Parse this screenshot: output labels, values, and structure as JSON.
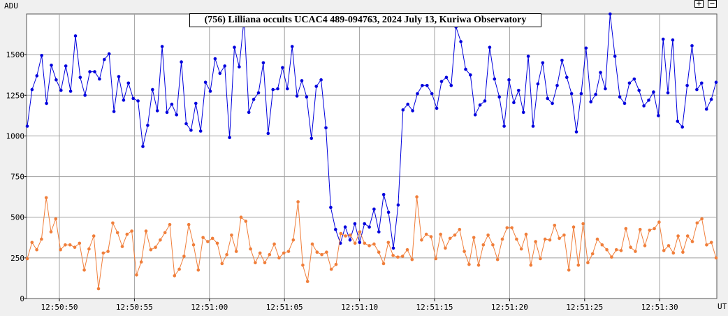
{
  "title": "(756) Lilliana occults UCAC4 489-094763, 2024 July 13, Kuriwa Observatory",
  "controls": {
    "zoom_in": "+",
    "zoom_out": "−"
  },
  "chart_data": {
    "type": "line",
    "ylabel": "ADU",
    "xlabel": "UT",
    "ylim": [
      0,
      1750
    ],
    "y_ticks": [
      0,
      250,
      500,
      750,
      1000,
      1250,
      1500
    ],
    "x_ticks": [
      "12:50:50",
      "12:50:55",
      "12:51:00",
      "12:51:05",
      "12:51:10",
      "12:51:15",
      "12:51:20",
      "12:51:25",
      "12:51:30"
    ],
    "grid": true,
    "colors": {
      "target": "#0000dd",
      "comparison": "#f07e3a",
      "grid": "#a0a0a0"
    },
    "series": [
      {
        "values": [
          1060,
          1285,
          1370,
          1495,
          1200,
          1435,
          1345,
          1280,
          1430,
          1275,
          1615,
          1360,
          1250,
          1395,
          1395,
          1350,
          1470,
          1505,
          1150,
          1365,
          1220,
          1325,
          1230,
          1215,
          935,
          1065,
          1285,
          1155,
          1550,
          1145,
          1195,
          1130,
          1455,
          1075,
          1035,
          1200,
          1030,
          1330,
          1275,
          1475,
          1385,
          1430,
          990,
          1545,
          1425,
          1720,
          1145,
          1225,
          1265,
          1450,
          1015,
          1285,
          1290,
          1420,
          1290,
          1550,
          1245,
          1340,
          1240,
          985,
          1305,
          1345,
          1050,
          560,
          425,
          340,
          440,
          360,
          460,
          345,
          460,
          440,
          550,
          410,
          640,
          530,
          310,
          575,
          1160,
          1195,
          1155,
          1260,
          1310,
          1310,
          1260,
          1170,
          1335,
          1360,
          1310,
          1670,
          1580,
          1410,
          1375,
          1130,
          1190,
          1215,
          1545,
          1350,
          1240,
          1060,
          1345,
          1205,
          1280,
          1145,
          1490,
          1060,
          1320,
          1450,
          1230,
          1200,
          1310,
          1465,
          1360,
          1260,
          1025,
          1260,
          1540,
          1210,
          1255,
          1390,
          1290,
          1750,
          1490,
          1240,
          1200,
          1325,
          1350,
          1280,
          1185,
          1220,
          1270,
          1125,
          1595,
          1265,
          1590,
          1090,
          1055,
          1310,
          1555,
          1285,
          1325,
          1165,
          1225,
          1330
        ]
      },
      {
        "values": [
          245,
          345,
          300,
          365,
          620,
          410,
          490,
          300,
          330,
          330,
          315,
          340,
          175,
          305,
          385,
          60,
          280,
          290,
          465,
          405,
          320,
          395,
          415,
          145,
          225,
          415,
          300,
          315,
          360,
          405,
          455,
          140,
          180,
          260,
          455,
          330,
          175,
          375,
          350,
          370,
          340,
          215,
          270,
          390,
          290,
          500,
          475,
          305,
          220,
          280,
          220,
          270,
          335,
          250,
          280,
          290,
          360,
          595,
          205,
          105,
          335,
          285,
          270,
          285,
          180,
          210,
          400,
          385,
          390,
          340,
          410,
          340,
          325,
          335,
          285,
          215,
          345,
          265,
          255,
          260,
          300,
          240,
          625,
          360,
          395,
          380,
          245,
          395,
          310,
          370,
          390,
          425,
          290,
          210,
          375,
          205,
          330,
          390,
          330,
          240,
          365,
          435,
          435,
          365,
          305,
          395,
          205,
          350,
          245,
          365,
          360,
          450,
          370,
          390,
          175,
          440,
          205,
          460,
          220,
          275,
          365,
          330,
          300,
          255,
          300,
          295,
          430,
          315,
          290,
          425,
          325,
          420,
          430,
          470,
          295,
          325,
          280,
          385,
          285,
          385,
          350,
          465,
          490,
          330,
          345,
          250
        ]
      }
    ]
  }
}
